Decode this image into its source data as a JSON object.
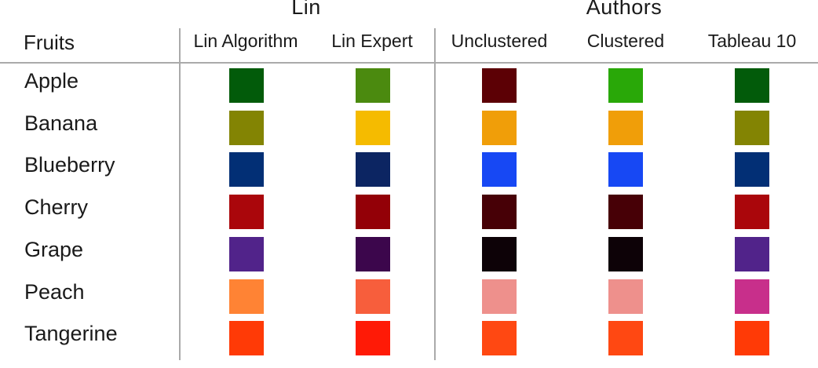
{
  "groups": {
    "lin": "Lin",
    "authors": "Authors"
  },
  "header": {
    "fruits": "Fruits",
    "columns": [
      "Lin Algorithm",
      "Lin Expert",
      "Unclustered",
      "Clustered",
      "Tableau 10"
    ]
  },
  "rows": [
    {
      "fruit": "Apple",
      "colors": [
        "#025b0a",
        "#4b8a0f",
        "#5c0005",
        "#29a808",
        "#025b0a"
      ]
    },
    {
      "fruit": "Banana",
      "colors": [
        "#838403",
        "#f5bb00",
        "#f09e09",
        "#f09e09",
        "#838403"
      ]
    },
    {
      "fruit": "Blueberry",
      "colors": [
        "#022f75",
        "#0c2562",
        "#1748f4",
        "#1748f4",
        "#022f75"
      ]
    },
    {
      "fruit": "Cherry",
      "colors": [
        "#aa060b",
        "#930007",
        "#470006",
        "#470006",
        "#aa060b"
      ]
    },
    {
      "fruit": "Grape",
      "colors": [
        "#51238a",
        "#3c064c",
        "#0d0207",
        "#0d0207",
        "#51238a"
      ]
    },
    {
      "fruit": "Peach",
      "colors": [
        "#ff8334",
        "#f75e3c",
        "#ee908c",
        "#ee908c",
        "#c82f8b"
      ]
    },
    {
      "fruit": "Tangerine",
      "colors": [
        "#ff3a06",
        "#ff1a06",
        "#ff4812",
        "#ff4812",
        "#ff3a06"
      ]
    }
  ]
}
